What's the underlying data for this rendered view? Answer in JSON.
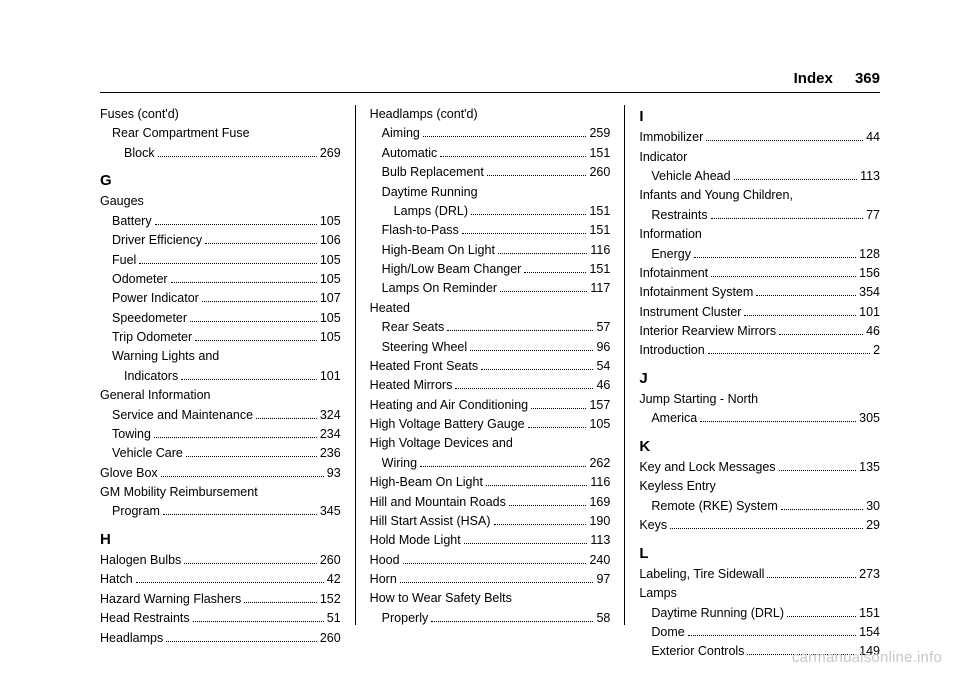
{
  "header": {
    "title": "Index",
    "page": "369"
  },
  "watermark": "carmanualsonline.info",
  "col1": [
    {
      "type": "head",
      "text": "Fuses (cont'd)"
    },
    {
      "type": "head",
      "indent": 1,
      "text": "Rear Compartment Fuse"
    },
    {
      "type": "entry",
      "indent": 2,
      "label": "Block",
      "page": "269"
    },
    {
      "type": "letter",
      "text": "G"
    },
    {
      "type": "head",
      "text": "Gauges"
    },
    {
      "type": "entry",
      "indent": 1,
      "label": "Battery",
      "page": "105"
    },
    {
      "type": "entry",
      "indent": 1,
      "label": "Driver Efficiency",
      "page": "106"
    },
    {
      "type": "entry",
      "indent": 1,
      "label": "Fuel",
      "page": "105"
    },
    {
      "type": "entry",
      "indent": 1,
      "label": "Odometer",
      "page": "105"
    },
    {
      "type": "entry",
      "indent": 1,
      "label": "Power Indicator",
      "page": "107"
    },
    {
      "type": "entry",
      "indent": 1,
      "label": "Speedometer",
      "page": "105"
    },
    {
      "type": "entry",
      "indent": 1,
      "label": "Trip Odometer",
      "page": "105"
    },
    {
      "type": "head",
      "indent": 1,
      "text": "Warning Lights and"
    },
    {
      "type": "entry",
      "indent": 2,
      "label": "Indicators",
      "page": "101"
    },
    {
      "type": "head",
      "text": "General Information"
    },
    {
      "type": "entry",
      "indent": 1,
      "label": "Service and Maintenance",
      "page": "324"
    },
    {
      "type": "entry",
      "indent": 1,
      "label": "Towing",
      "page": "234"
    },
    {
      "type": "entry",
      "indent": 1,
      "label": "Vehicle Care",
      "page": "236"
    },
    {
      "type": "entry",
      "label": "Glove Box",
      "page": "93"
    },
    {
      "type": "head",
      "text": "GM Mobility Reimbursement"
    },
    {
      "type": "entry",
      "indent": 1,
      "label": "Program",
      "page": "345"
    },
    {
      "type": "letter",
      "text": "H"
    },
    {
      "type": "entry",
      "label": "Halogen Bulbs",
      "page": "260"
    },
    {
      "type": "entry",
      "label": "Hatch",
      "page": "42"
    },
    {
      "type": "entry",
      "label": "Hazard Warning Flashers",
      "page": "152"
    },
    {
      "type": "entry",
      "label": "Head Restraints",
      "page": "51"
    },
    {
      "type": "entry",
      "label": "Headlamps",
      "page": "260"
    }
  ],
  "col2": [
    {
      "type": "head",
      "text": "Headlamps (cont'd)"
    },
    {
      "type": "entry",
      "indent": 1,
      "label": "Aiming",
      "page": "259"
    },
    {
      "type": "entry",
      "indent": 1,
      "label": "Automatic",
      "page": "151"
    },
    {
      "type": "entry",
      "indent": 1,
      "label": "Bulb Replacement",
      "page": "260"
    },
    {
      "type": "head",
      "indent": 1,
      "text": "Daytime Running"
    },
    {
      "type": "entry",
      "indent": 2,
      "label": "Lamps (DRL)",
      "page": "151"
    },
    {
      "type": "entry",
      "indent": 1,
      "label": "Flash-to-Pass",
      "page": "151"
    },
    {
      "type": "entry",
      "indent": 1,
      "label": "High-Beam On Light",
      "page": "116"
    },
    {
      "type": "entry",
      "indent": 1,
      "label": "High/Low Beam Changer",
      "page": "151"
    },
    {
      "type": "entry",
      "indent": 1,
      "label": "Lamps On Reminder",
      "page": "117"
    },
    {
      "type": "head",
      "text": "Heated"
    },
    {
      "type": "entry",
      "indent": 1,
      "label": "Rear Seats",
      "page": "57"
    },
    {
      "type": "entry",
      "indent": 1,
      "label": "Steering Wheel",
      "page": "96"
    },
    {
      "type": "entry",
      "label": "Heated Front Seats",
      "page": "54"
    },
    {
      "type": "entry",
      "label": "Heated Mirrors",
      "page": "46"
    },
    {
      "type": "entry",
      "label": "Heating and Air Conditioning",
      "page": "157"
    },
    {
      "type": "entry",
      "label": "High Voltage Battery Gauge",
      "page": "105"
    },
    {
      "type": "head",
      "text": "High Voltage Devices and"
    },
    {
      "type": "entry",
      "indent": 1,
      "label": "Wiring",
      "page": "262"
    },
    {
      "type": "entry",
      "label": "High-Beam On Light",
      "page": "116"
    },
    {
      "type": "entry",
      "label": "Hill and Mountain Roads",
      "page": "169"
    },
    {
      "type": "entry",
      "label": "Hill Start Assist (HSA)",
      "page": "190"
    },
    {
      "type": "entry",
      "label": "Hold Mode Light",
      "page": "113"
    },
    {
      "type": "entry",
      "label": "Hood",
      "page": "240"
    },
    {
      "type": "entry",
      "label": "Horn",
      "page": "97"
    },
    {
      "type": "head",
      "text": "How to Wear Safety Belts"
    },
    {
      "type": "entry",
      "indent": 1,
      "label": "Properly",
      "page": "58"
    }
  ],
  "col3": [
    {
      "type": "letter",
      "text": "I",
      "nomargin": true
    },
    {
      "type": "entry",
      "label": "Immobilizer",
      "page": "44"
    },
    {
      "type": "head",
      "text": "Indicator"
    },
    {
      "type": "entry",
      "indent": 1,
      "label": "Vehicle Ahead",
      "page": "113"
    },
    {
      "type": "head",
      "text": "Infants and Young Children,"
    },
    {
      "type": "entry",
      "indent": 1,
      "label": "Restraints",
      "page": "77"
    },
    {
      "type": "head",
      "text": "Information"
    },
    {
      "type": "entry",
      "indent": 1,
      "label": "Energy",
      "page": "128"
    },
    {
      "type": "entry",
      "label": "Infotainment",
      "page": "156"
    },
    {
      "type": "entry",
      "label": "Infotainment System",
      "page": "354"
    },
    {
      "type": "entry",
      "label": "Instrument Cluster",
      "page": "101"
    },
    {
      "type": "entry",
      "label": "Interior Rearview Mirrors",
      "page": "46"
    },
    {
      "type": "entry",
      "label": "Introduction",
      "page": "2"
    },
    {
      "type": "letter",
      "text": "J"
    },
    {
      "type": "head",
      "text": "Jump Starting - North"
    },
    {
      "type": "entry",
      "indent": 1,
      "label": "America",
      "page": "305"
    },
    {
      "type": "letter",
      "text": "K"
    },
    {
      "type": "entry",
      "label": "Key and Lock Messages",
      "page": "135"
    },
    {
      "type": "head",
      "text": "Keyless Entry"
    },
    {
      "type": "entry",
      "indent": 1,
      "label": "Remote (RKE) System",
      "page": "30"
    },
    {
      "type": "entry",
      "label": "Keys",
      "page": "29"
    },
    {
      "type": "letter",
      "text": "L"
    },
    {
      "type": "entry",
      "label": "Labeling, Tire Sidewall",
      "page": "273"
    },
    {
      "type": "head",
      "text": "Lamps"
    },
    {
      "type": "entry",
      "indent": 1,
      "label": "Daytime Running (DRL)",
      "page": "151"
    },
    {
      "type": "entry",
      "indent": 1,
      "label": "Dome",
      "page": "154"
    },
    {
      "type": "entry",
      "indent": 1,
      "label": "Exterior Controls",
      "page": "149"
    }
  ]
}
